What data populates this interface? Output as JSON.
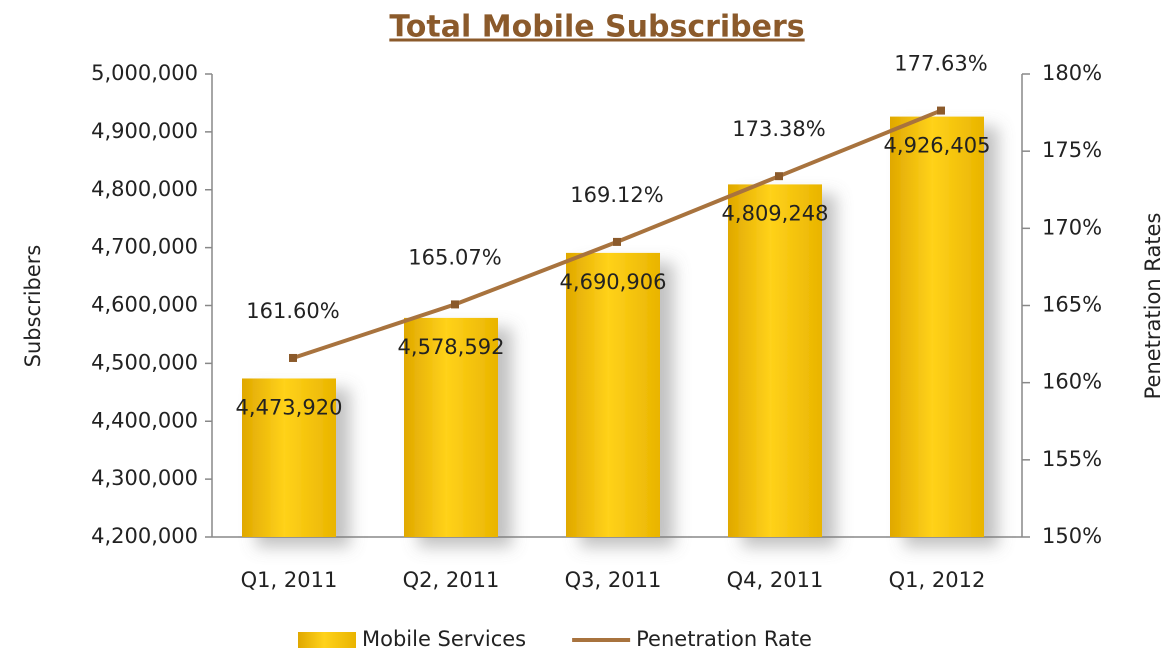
{
  "chart_data": {
    "type": "bar",
    "title": "Total Mobile Subscribers",
    "categories": [
      "Q1, 2011",
      "Q2, 2011",
      "Q3, 2011",
      "Q4, 2011",
      "Q1, 2012"
    ],
    "y_label": "Subscribers",
    "y2_label": "Penetration Rates",
    "series": [
      {
        "name": "Mobile Services",
        "type": "bar",
        "axis": "y",
        "color": "#f2c200",
        "values": [
          4473920,
          4578592,
          4690906,
          4809248,
          4926405
        ],
        "value_labels": [
          "4,473,920",
          "4,578,592",
          "4,690,906",
          "4,809,248",
          "4,926,405"
        ]
      },
      {
        "name": "Penetration Rate",
        "type": "line",
        "axis": "y2",
        "color": "#a8733e",
        "values": [
          161.6,
          165.07,
          169.12,
          173.38,
          177.63
        ],
        "value_labels": [
          "161.60%",
          "165.07%",
          "169.12%",
          "173.38%",
          "177.63%"
        ]
      }
    ],
    "ylim": [
      4200000,
      5000000
    ],
    "yticks": [
      {
        "value": 4200000,
        "label": "4,200,000"
      },
      {
        "value": 4300000,
        "label": "4,300,000"
      },
      {
        "value": 4400000,
        "label": "4,400,000"
      },
      {
        "value": 4500000,
        "label": "4,500,000"
      },
      {
        "value": 4600000,
        "label": "4,600,000"
      },
      {
        "value": 4700000,
        "label": "4,700,000"
      },
      {
        "value": 4800000,
        "label": "4,800,000"
      },
      {
        "value": 4900000,
        "label": "4,900,000"
      },
      {
        "value": 5000000,
        "label": "5,000,000"
      }
    ],
    "y2lim": [
      150,
      180
    ],
    "y2ticks": [
      {
        "value": 150,
        "label": "150%"
      },
      {
        "value": 155,
        "label": "155%"
      },
      {
        "value": 160,
        "label": "160%"
      },
      {
        "value": 165,
        "label": "165%"
      },
      {
        "value": 170,
        "label": "170%"
      },
      {
        "value": 175,
        "label": "175%"
      },
      {
        "value": 180,
        "label": "180%"
      }
    ],
    "legend": "bottom",
    "grid": false
  }
}
